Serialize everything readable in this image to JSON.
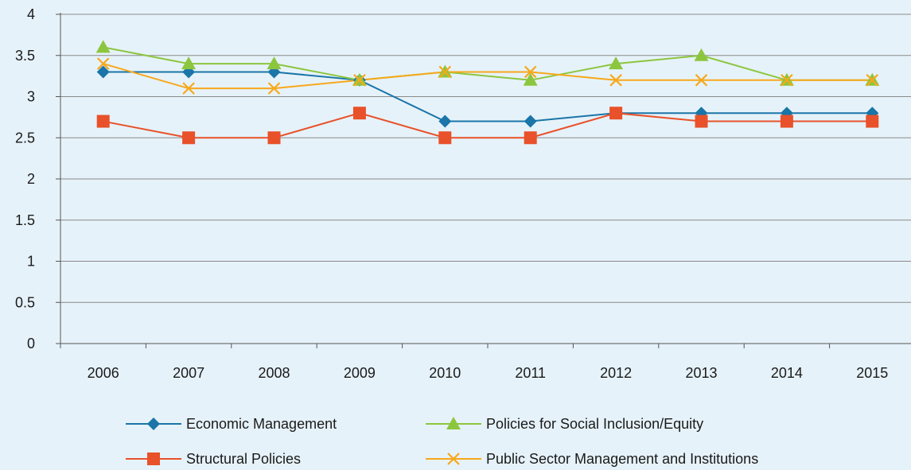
{
  "chart_data": {
    "type": "line",
    "categories": [
      "2006",
      "2007",
      "2008",
      "2009",
      "2010",
      "2011",
      "2012",
      "2013",
      "2014",
      "2015"
    ],
    "ylim": [
      0,
      4
    ],
    "yticks": [
      "0",
      "0.5",
      "1",
      "1.5",
      "2",
      "2.5",
      "3",
      "3.5",
      "4"
    ],
    "grid": true,
    "legend_position": "bottom",
    "series": [
      {
        "name": "Economic Management",
        "color": "#1a75a8",
        "marker": "diamond",
        "values": [
          3.3,
          3.3,
          3.3,
          3.2,
          2.7,
          2.7,
          2.8,
          2.8,
          2.8,
          2.8
        ]
      },
      {
        "name": "Policies for Social Inclusion/Equity",
        "color": "#8cc63f",
        "marker": "triangle",
        "values": [
          3.6,
          3.4,
          3.4,
          3.2,
          3.3,
          3.2,
          3.4,
          3.5,
          3.2,
          3.2
        ]
      },
      {
        "name": "Structural Policies",
        "color": "#e8512a",
        "marker": "square",
        "values": [
          2.7,
          2.5,
          2.5,
          2.8,
          2.5,
          2.5,
          2.8,
          2.7,
          2.7,
          2.7
        ]
      },
      {
        "name": "Public Sector Management and Institutions",
        "color": "#f7a81b",
        "marker": "x",
        "values": [
          3.4,
          3.1,
          3.1,
          3.2,
          3.3,
          3.3,
          3.2,
          3.2,
          3.2,
          3.2
        ]
      }
    ]
  }
}
